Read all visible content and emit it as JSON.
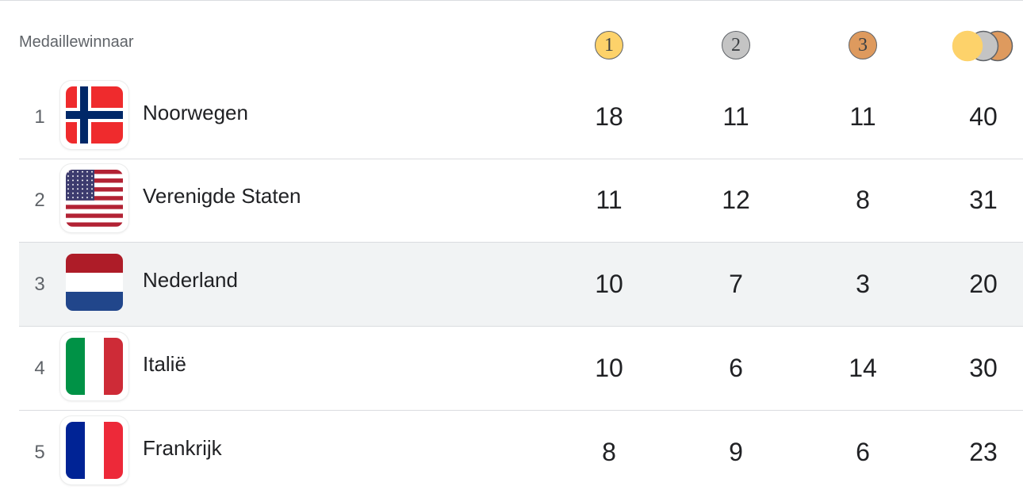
{
  "table": {
    "header": {
      "label": "Medaillewinnaar",
      "medals": [
        "1",
        "2",
        "3"
      ]
    },
    "rows": [
      {
        "rank": 1,
        "country": "Noorwegen",
        "gold": 18,
        "silver": 11,
        "bronze": 11,
        "total": 40
      },
      {
        "rank": 2,
        "country": "Verenigde Staten",
        "gold": 11,
        "silver": 12,
        "bronze": 8,
        "total": 31
      },
      {
        "rank": 3,
        "country": "Nederland",
        "gold": 10,
        "silver": 7,
        "bronze": 3,
        "total": 20
      },
      {
        "rank": 4,
        "country": "Italië",
        "gold": 10,
        "silver": 6,
        "bronze": 14,
        "total": 30
      },
      {
        "rank": 5,
        "country": "Frankrijk",
        "gold": 8,
        "silver": 9,
        "bronze": 6,
        "total": 23
      }
    ]
  }
}
